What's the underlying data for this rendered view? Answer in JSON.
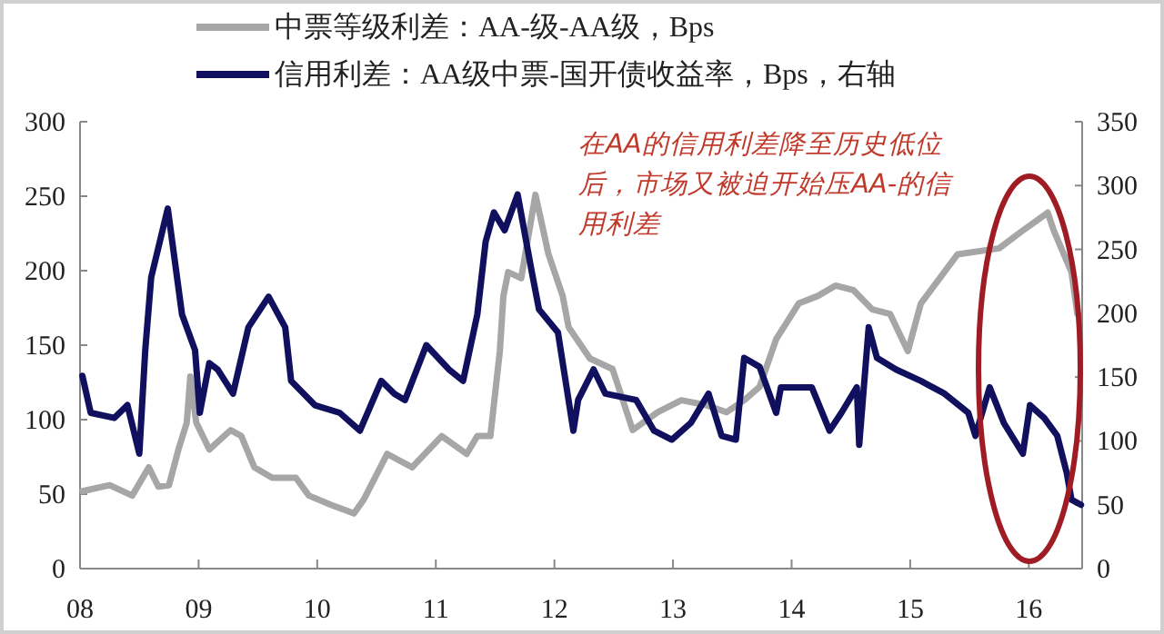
{
  "chart_data": {
    "type": "line",
    "legend": "top",
    "xlim": [
      2008,
      2016.45
    ],
    "xticks": [
      {
        "value": 2008,
        "label": "08"
      },
      {
        "value": 2009,
        "label": "09"
      },
      {
        "value": 2010,
        "label": "10"
      },
      {
        "value": 2011,
        "label": "11"
      },
      {
        "value": 2012,
        "label": "12"
      },
      {
        "value": 2013,
        "label": "13"
      },
      {
        "value": 2014,
        "label": "14"
      },
      {
        "value": 2015,
        "label": "15"
      },
      {
        "value": 2016,
        "label": "16"
      }
    ],
    "ylim": [
      0,
      300
    ],
    "yticks": [
      0,
      50,
      100,
      150,
      200,
      250,
      300
    ],
    "y2lim": [
      0,
      350
    ],
    "y2ticks": [
      0,
      50,
      100,
      150,
      200,
      250,
      300,
      350
    ],
    "annotations": [
      "在AA的信用利差降至历史低位后，市场又被迫开始压AA-的信用利差"
    ],
    "series": [
      {
        "name": "中票等级利差：AA-级-AA级，Bps",
        "color": "#a6a6a6",
        "x": [
          2008.02,
          2008.25,
          2008.44,
          2008.58,
          2008.66,
          2008.75,
          2008.83,
          2008.9,
          2008.93,
          2008.98,
          2009.09,
          2009.27,
          2009.36,
          2009.47,
          2009.62,
          2009.82,
          2009.93,
          2010.11,
          2010.31,
          2010.39,
          2010.59,
          2010.8,
          2011.05,
          2011.26,
          2011.35,
          2011.46,
          2011.54,
          2011.57,
          2011.61,
          2011.72,
          2011.84,
          2011.95,
          2012.07,
          2012.12,
          2012.3,
          2012.49,
          2012.66,
          2012.87,
          2013.07,
          2013.27,
          2013.45,
          2013.6,
          2013.73,
          2013.87,
          2014.06,
          2014.22,
          2014.37,
          2014.52,
          2014.68,
          2014.83,
          2014.98,
          2015.09,
          2015.4,
          2015.75,
          2015.95,
          2016.16,
          2016.21,
          2016.36,
          2016.41
        ],
        "values": [
          52,
          56,
          49,
          68,
          55,
          56,
          80,
          98,
          129,
          98,
          80,
          93,
          89,
          68,
          61,
          61,
          49,
          43,
          37,
          46,
          77,
          68,
          89,
          77,
          89,
          89,
          146,
          183,
          199,
          195,
          251,
          211,
          183,
          162,
          141,
          134,
          93,
          105,
          113,
          110,
          105,
          113,
          122,
          154,
          178,
          183,
          190,
          187,
          174,
          171,
          146,
          178,
          211,
          215,
          227,
          239,
          227,
          199,
          171
        ]
      },
      {
        "name": "信用利差：AA级中票-国开债收益率，Bps，右轴",
        "color": "#10105e",
        "axis": "y2",
        "x": [
          2008.02,
          2008.09,
          2008.29,
          2008.4,
          2008.5,
          2008.55,
          2008.6,
          2008.74,
          2008.86,
          2008.97,
          2009.01,
          2009.09,
          2009.16,
          2009.29,
          2009.42,
          2009.59,
          2009.73,
          2009.78,
          2009.98,
          2010.19,
          2010.36,
          2010.54,
          2010.65,
          2010.74,
          2010.92,
          2011.11,
          2011.23,
          2011.35,
          2011.42,
          2011.49,
          2011.58,
          2011.69,
          2011.81,
          2011.87,
          2012.03,
          2012.16,
          2012.2,
          2012.33,
          2012.43,
          2012.69,
          2012.84,
          2012.99,
          2013.15,
          2013.3,
          2013.41,
          2013.53,
          2013.6,
          2013.73,
          2013.87,
          2013.91,
          2014.17,
          2014.32,
          2014.42,
          2014.55,
          2014.57,
          2014.65,
          2014.72,
          2014.88,
          2015.09,
          2015.29,
          2015.49,
          2015.55,
          2015.67,
          2015.79,
          2015.95,
          2016.01,
          2016.13,
          2016.24,
          2016.32,
          2016.36,
          2016.44
        ],
        "values": [
          151,
          122,
          118,
          128,
          90,
          171,
          228,
          282,
          199,
          171,
          122,
          161,
          156,
          137,
          189,
          213,
          189,
          147,
          128,
          122,
          108,
          147,
          137,
          132,
          175,
          156,
          147,
          199,
          256,
          279,
          265,
          293,
          232,
          203,
          185,
          108,
          132,
          156,
          137,
          132,
          108,
          101,
          114,
          137,
          104,
          101,
          165,
          158,
          122,
          142,
          142,
          108,
          122,
          142,
          97,
          189,
          165,
          156,
          147,
          137,
          122,
          104,
          142,
          114,
          90,
          128,
          118,
          104,
          75,
          54,
          50
        ]
      }
    ]
  }
}
